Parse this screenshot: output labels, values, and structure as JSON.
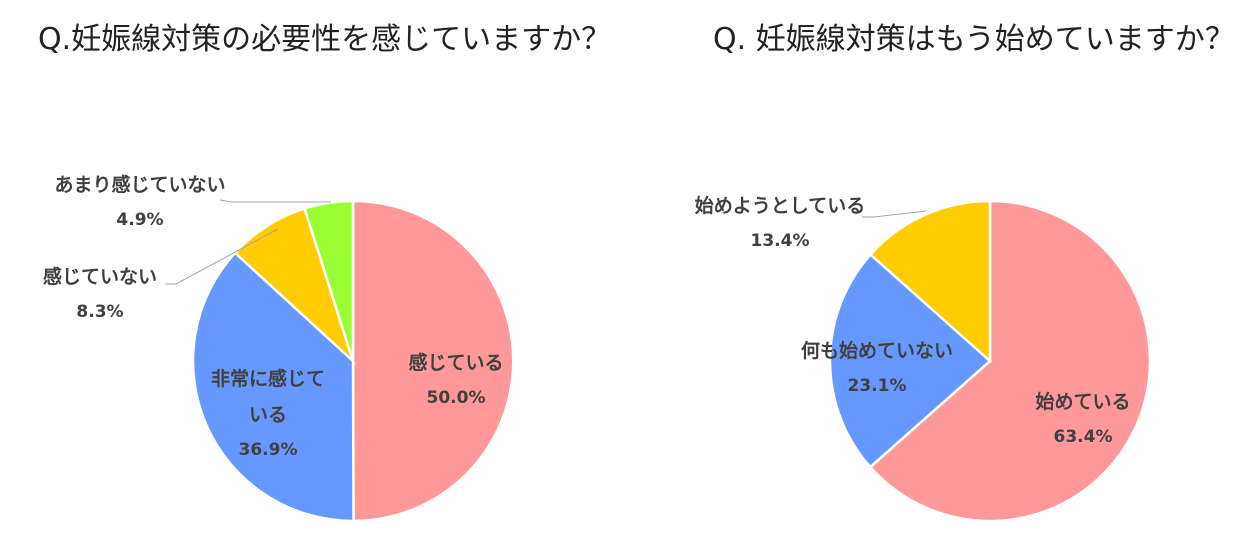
{
  "chart_data": [
    {
      "type": "pie",
      "title": "Q.妊娠線対策の必要性を感じていますか？",
      "slices": [
        {
          "label": "感じている",
          "value": 50.0,
          "pct_text": "50.0%",
          "color": "#ff9999"
        },
        {
          "label": "非常に感じている",
          "label_lines": [
            "非常に感じて",
            "いる"
          ],
          "value": 36.9,
          "pct_text": "36.9%",
          "color": "#6699ff"
        },
        {
          "label": "感じていない",
          "value": 8.3,
          "pct_text": "8.3%",
          "color": "#ffcc00"
        },
        {
          "label": "あまり感じていない",
          "value": 4.9,
          "pct_text": "4.9%",
          "color": "#99ff33"
        }
      ]
    },
    {
      "type": "pie",
      "title": "Q. 妊娠線対策はもう始めていますか？",
      "slices": [
        {
          "label": "始めている",
          "value": 63.4,
          "pct_text": "63.4%",
          "color": "#ff9999"
        },
        {
          "label": "何も始めていない",
          "value": 23.1,
          "pct_text": "23.1%",
          "color": "#6699ff"
        },
        {
          "label": "始めようとしている",
          "value": 13.4,
          "pct_text": "13.4%",
          "color": "#ffcc00"
        }
      ]
    }
  ]
}
